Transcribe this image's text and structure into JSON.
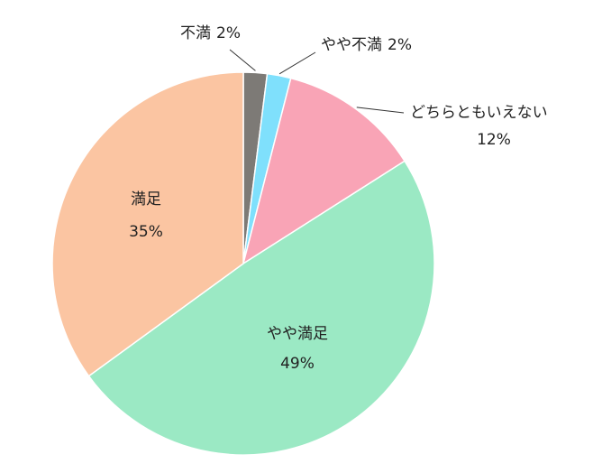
{
  "chart_data": {
    "type": "pie",
    "title": "",
    "slices": [
      {
        "label": "不満",
        "value": 2,
        "pct_label": "2%",
        "color": "#7d7a76"
      },
      {
        "label": "やや不満",
        "value": 2,
        "pct_label": "2%",
        "color": "#7fe0fc"
      },
      {
        "label": "どちらともいえない",
        "value": 12,
        "pct_label": "12%",
        "color": "#f9a4b6"
      },
      {
        "label": "やや満足",
        "value": 49,
        "pct_label": "49%",
        "color": "#9be9c4"
      },
      {
        "label": "満足",
        "value": 35,
        "pct_label": "35%",
        "color": "#fbc5a2"
      }
    ],
    "start_angle": "12 o'clock",
    "direction": "clockwise",
    "legend": "none"
  }
}
